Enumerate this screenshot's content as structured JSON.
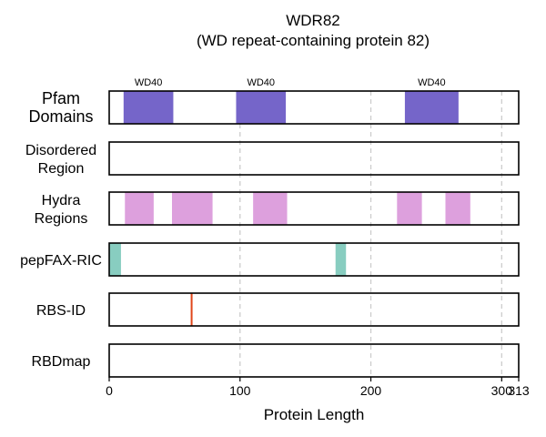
{
  "chart_data": {
    "type": "bar",
    "title": "WDR82",
    "subtitle": "(WD repeat-containing protein 82)",
    "xlabel": "Protein Length",
    "xlim": [
      0,
      313
    ],
    "xticks": [
      0,
      100,
      200,
      300,
      313
    ],
    "grid_x": [
      100,
      200,
      300
    ],
    "tracks": [
      {
        "name": "Pfam Domains",
        "label_lines": [
          "Pfam",
          "Domains"
        ],
        "color": "#7565c9",
        "segments": [
          {
            "start": 11,
            "end": 49,
            "label": "WD40"
          },
          {
            "start": 97,
            "end": 135,
            "label": "WD40"
          },
          {
            "start": 226,
            "end": 267,
            "label": "WD40"
          }
        ]
      },
      {
        "name": "Disordered Region",
        "label_lines": [
          "Disordered",
          "Region"
        ],
        "color": "#aaaaaa",
        "segments": []
      },
      {
        "name": "Hydra Regions",
        "label_lines": [
          "Hydra",
          "Regions"
        ],
        "color": "#dda0dd",
        "segments": [
          {
            "start": 12,
            "end": 34
          },
          {
            "start": 48,
            "end": 79
          },
          {
            "start": 110,
            "end": 136
          },
          {
            "start": 220,
            "end": 239
          },
          {
            "start": 257,
            "end": 276
          }
        ]
      },
      {
        "name": "pepFAX-RIC",
        "label_lines": [
          "pepFAX-RIC"
        ],
        "color": "#88cdc0",
        "segments": [
          {
            "start": 0,
            "end": 9
          },
          {
            "start": 173,
            "end": 181
          }
        ]
      },
      {
        "name": "RBS-ID",
        "label_lines": [
          "RBS-ID"
        ],
        "color": "#e0461a",
        "sites": [
          63
        ]
      },
      {
        "name": "RBDmap",
        "label_lines": [
          "RBDmap"
        ],
        "color": "#aaaaaa",
        "segments": []
      }
    ]
  }
}
